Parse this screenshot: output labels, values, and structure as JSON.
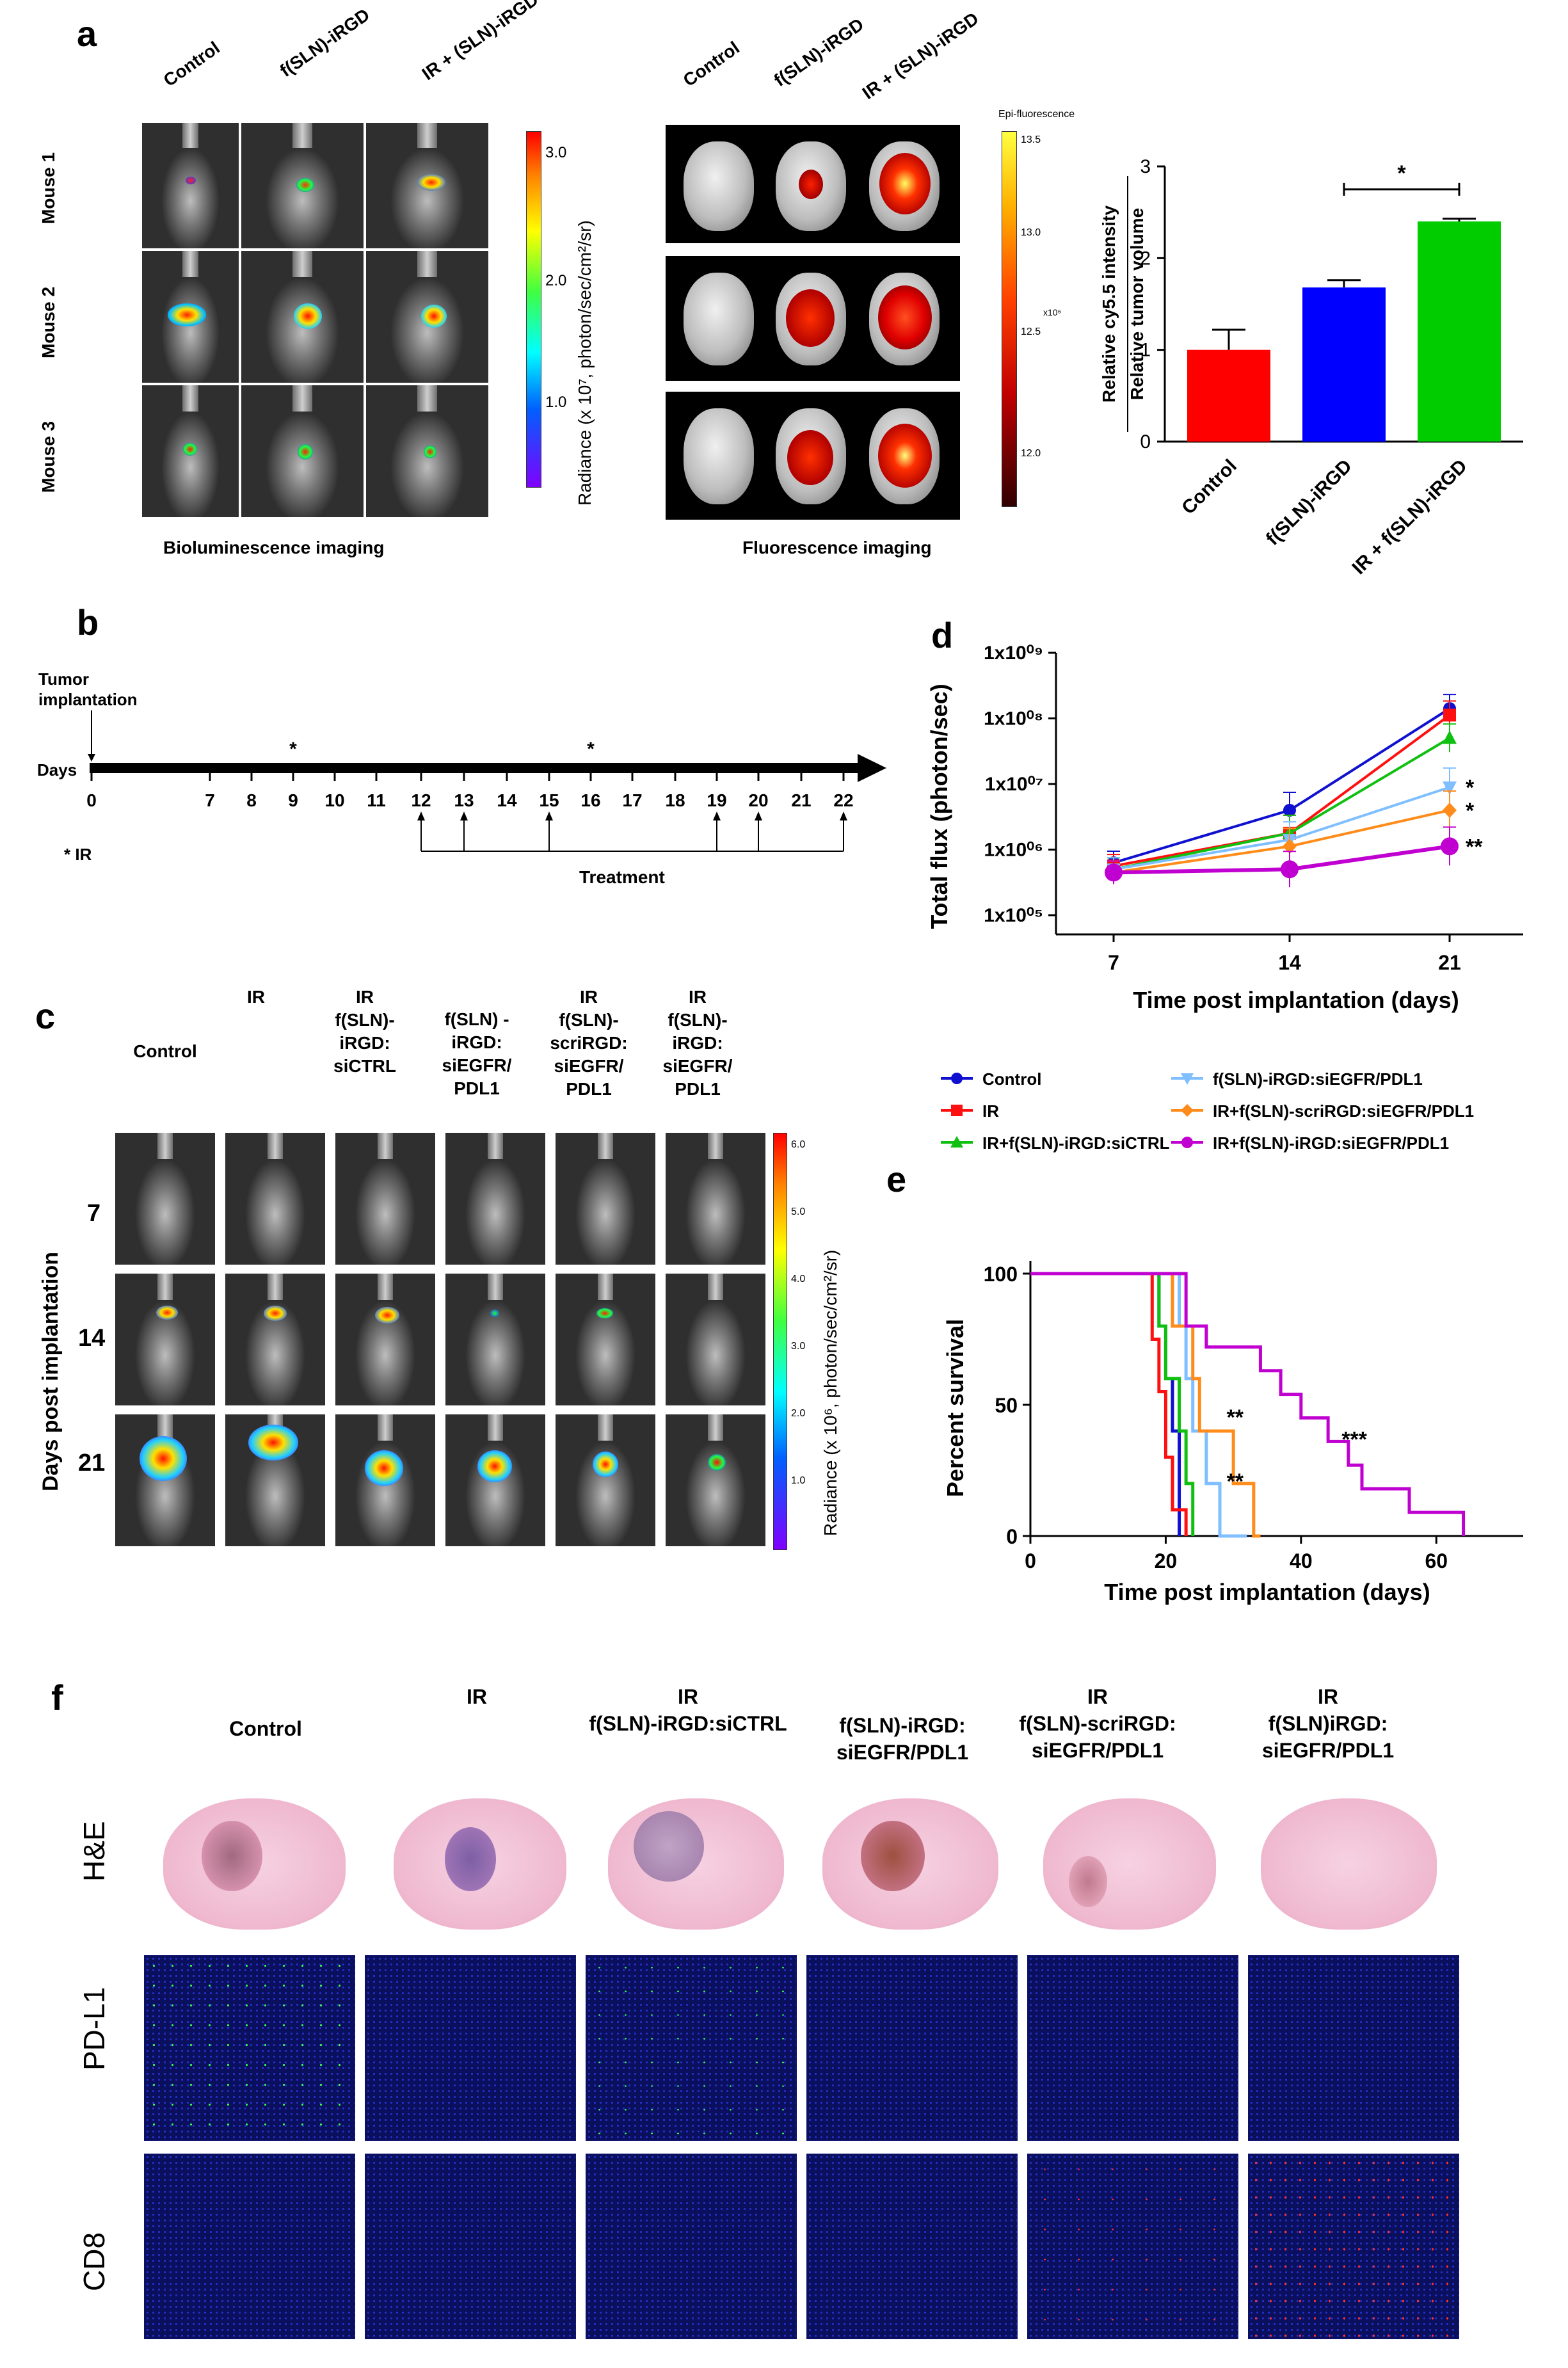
{
  "panel_labels": {
    "a": "a",
    "b": "b",
    "c": "c",
    "d": "d",
    "e": "e",
    "f": "f"
  },
  "panel_a": {
    "bli_columns": [
      "Control",
      "f(SLN)-iRGD",
      "IR + (SLN)-iRGD"
    ],
    "bli_rows": [
      "Mouse 1",
      "Mouse 2",
      "Mouse 3"
    ],
    "bli_caption": "Bioluminescence imaging",
    "bli_colorbar_label": "Radiance (x 10⁷, photon/sec/cm²/sr)",
    "bli_colorbar_ticks": [
      "3.0",
      "2.0",
      "1.0"
    ],
    "fluo_columns": [
      "Control",
      "f(SLN)-iRGD",
      "IR + (SLN)-iRGD"
    ],
    "fluo_caption": "Fluorescence imaging",
    "fluo_colorbar_title": "Epi-fluorescence",
    "fluo_colorbar_ticks": [
      "13.5",
      "13.0",
      "12.5",
      "12.0"
    ],
    "fluo_colorbar_unit": "x10⁶"
  },
  "chart_data": [
    {
      "type": "bar",
      "panel": "a",
      "categories": [
        "Control",
        "f(SLN)-iRGD",
        "IR + f(SLN)-iRGD"
      ],
      "values": [
        1.0,
        1.68,
        2.4
      ],
      "errors": [
        0.22,
        0.08,
        0.03
      ],
      "colors": [
        "#ff0000",
        "#0000ff",
        "#00cc00"
      ],
      "ylabel": "Relative cy5.5 intensity",
      "ylabel2": "Relative tumor volume",
      "ylim": [
        0,
        3
      ],
      "yticks": [
        "0",
        "1",
        "2",
        "3"
      ],
      "annotation": "*"
    },
    {
      "type": "line",
      "panel": "d",
      "x": [
        7,
        14,
        21
      ],
      "xticks": [
        "7",
        "14",
        "21"
      ],
      "xlabel": "Time post implantation (days)",
      "ylabel": "Total flux (photon/sec)",
      "ylog_range": [
        5,
        9
      ],
      "yticks": [
        "1x10⁰⁹",
        "1x10⁰⁸",
        "1x10⁰⁷",
        "1x10⁰⁶",
        "1x10⁰⁵"
      ],
      "series": [
        {
          "name": "Control",
          "color": "#1010d0",
          "marker": "circle",
          "log_values": [
            5.8,
            6.6,
            8.15
          ]
        },
        {
          "name": "IR",
          "color": "#ff1010",
          "marker": "square",
          "log_values": [
            5.75,
            6.25,
            8.05
          ]
        },
        {
          "name": "IR+f(SLN)-iRGD:siCTRL",
          "color": "#10c010",
          "marker": "triangle",
          "log_values": [
            5.7,
            6.25,
            7.7
          ]
        },
        {
          "name": "f(SLN)-iRGD:siEGFR/PDL1",
          "color": "#7fbfff",
          "marker": "tri-down",
          "log_values": [
            5.7,
            6.15,
            6.95
          ]
        },
        {
          "name": "IR+f(SLN)-scriRGD:siEGFR/PDL1",
          "color": "#ff8c1a",
          "marker": "diamond",
          "log_values": [
            5.65,
            6.05,
            6.6
          ]
        },
        {
          "name": "IR+f(SLN)-iRGD:siEGFR/PDL1",
          "color": "#c000d0",
          "marker": "circle",
          "log_values": [
            5.65,
            5.7,
            6.05
          ]
        }
      ],
      "significance": [
        "*",
        "*",
        "**"
      ]
    },
    {
      "type": "line",
      "panel": "e",
      "xlabel": "Time post implantation (days)",
      "ylabel": "Percent survival",
      "xticks": [
        "0",
        "20",
        "40",
        "60"
      ],
      "yticks": [
        "0",
        "50",
        "100"
      ],
      "xlim": [
        0,
        70
      ],
      "ylim": [
        0,
        100
      ],
      "series": [
        {
          "name": "Control",
          "color": "#1010d0",
          "points": [
            [
              0,
              100
            ],
            [
              19,
              100
            ],
            [
              19,
              80
            ],
            [
              20,
              80
            ],
            [
              20,
              60
            ],
            [
              21,
              60
            ],
            [
              21,
              40
            ],
            [
              22,
              40
            ],
            [
              22,
              0
            ]
          ]
        },
        {
          "name": "IR",
          "color": "#ff1010",
          "points": [
            [
              0,
              100
            ],
            [
              18,
              100
            ],
            [
              18,
              75
            ],
            [
              19,
              75
            ],
            [
              19,
              55
            ],
            [
              20,
              55
            ],
            [
              20,
              30
            ],
            [
              21,
              30
            ],
            [
              21,
              10
            ],
            [
              23,
              10
            ],
            [
              23,
              0
            ]
          ]
        },
        {
          "name": "IR+f(SLN)-iRGD:siCTRL",
          "color": "#10c010",
          "points": [
            [
              0,
              100
            ],
            [
              19,
              100
            ],
            [
              19,
              80
            ],
            [
              20,
              80
            ],
            [
              20,
              60
            ],
            [
              22,
              60
            ],
            [
              22,
              40
            ],
            [
              23,
              40
            ],
            [
              23,
              20
            ],
            [
              24,
              20
            ],
            [
              24,
              0
            ]
          ]
        },
        {
          "name": "f(SLN)-iRGD:siEGFR/PDL1",
          "color": "#7fbfff",
          "points": [
            [
              0,
              100
            ],
            [
              22,
              100
            ],
            [
              22,
              80
            ],
            [
              23,
              80
            ],
            [
              23,
              60
            ],
            [
              24,
              60
            ],
            [
              24,
              40
            ],
            [
              26,
              40
            ],
            [
              26,
              20
            ],
            [
              28,
              20
            ],
            [
              28,
              0
            ],
            [
              32,
              0
            ]
          ]
        },
        {
          "name": "IR+f(SLN)-scriRGD:siEGFR/PDL1",
          "color": "#ff8c1a",
          "points": [
            [
              0,
              100
            ],
            [
              21,
              100
            ],
            [
              21,
              80
            ],
            [
              24,
              80
            ],
            [
              24,
              60
            ],
            [
              25,
              60
            ],
            [
              25,
              40
            ],
            [
              30,
              40
            ],
            [
              30,
              20
            ],
            [
              33,
              20
            ],
            [
              33,
              0
            ],
            [
              34,
              0
            ]
          ]
        },
        {
          "name": "IR+f(SLN)-iRGD:siEGFR/PDL1",
          "color": "#c000d0",
          "points": [
            [
              0,
              100
            ],
            [
              23,
              100
            ],
            [
              23,
              80
            ],
            [
              26,
              80
            ],
            [
              26,
              72
            ],
            [
              34,
              72
            ],
            [
              34,
              63
            ],
            [
              37,
              63
            ],
            [
              37,
              54
            ],
            [
              40,
              54
            ],
            [
              40,
              45
            ],
            [
              44,
              45
            ],
            [
              44,
              36
            ],
            [
              47,
              36
            ],
            [
              47,
              27
            ],
            [
              49,
              27
            ],
            [
              49,
              18
            ],
            [
              56,
              18
            ],
            [
              56,
              9
            ],
            [
              64,
              9
            ],
            [
              64,
              0
            ]
          ]
        }
      ],
      "annotations": [
        "**",
        "**",
        "***"
      ]
    }
  ],
  "panel_b": {
    "tumor_label": "Tumor\nimplantation",
    "days_label": "Days",
    "days": [
      "0",
      "7",
      "8",
      "9",
      "10",
      "11",
      "12",
      "13",
      "14",
      "15",
      "16",
      "17",
      "18",
      "19",
      "20",
      "21",
      "22"
    ],
    "ir_marks": [
      "*",
      "*"
    ],
    "ir_legend": "* IR",
    "treatment_label": "Treatment"
  },
  "panel_c": {
    "columns": [
      "Control",
      "IR",
      "IR\nf(SLN)-\niRGD:\nsiCTRL",
      "f(SLN) -\niRGD:\nsiEGFR/\nPDL1",
      "IR\nf(SLN)-\nscriRGD:\nsiEGFR/\nPDL1",
      "IR\nf(SLN)-\niRGD:\nsiEGFR/\nPDL1"
    ],
    "rows": [
      "7",
      "14",
      "21"
    ],
    "row_axis_label": "Days post implantation",
    "colorbar_label": "Radiance (x 10⁶, photon/sec/cm²/sr)",
    "colorbar_ticks": [
      "6.0",
      "5.0",
      "4.0",
      "3.0",
      "2.0",
      "1.0"
    ]
  },
  "legend": [
    "Control",
    "IR",
    "IR+f(SLN)-iRGD:siCTRL",
    "f(SLN)-iRGD:siEGFR/PDL1",
    "IR+f(SLN)-scriRGD:siEGFR/PDL1",
    "IR+f(SLN)-iRGD:siEGFR/PDL1"
  ],
  "panel_f": {
    "columns": [
      "Control",
      "IR",
      "IR\nf(SLN)-iRGD:siCTRL",
      "f(SLN)-iRGD:\nsiEGFR/PDL1",
      "IR\nf(SLN)-scriRGD:\nsiEGFR/PDL1",
      "IR\nf(SLN)iRGD:\nsiEGFR/PDL1"
    ],
    "rows": [
      "H&E",
      "PD-L1",
      "CD8"
    ]
  }
}
